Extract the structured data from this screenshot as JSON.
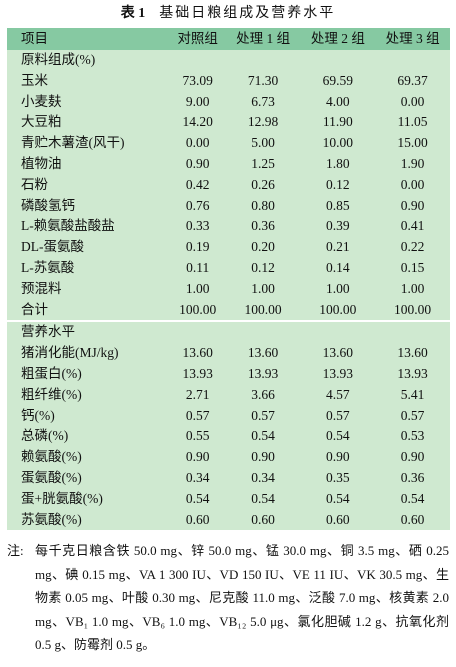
{
  "title": {
    "label": "表 1",
    "text": "基础日粮组成及营养水平"
  },
  "table": {
    "header": [
      "项目",
      "对照组",
      "处理 1 组",
      "处理 2 组",
      "处理 3 组"
    ],
    "sections": [
      {
        "title": "原料组成(%)",
        "rows": [
          [
            "玉米",
            "73.09",
            "71.30",
            "69.59",
            "69.37"
          ],
          [
            "小麦麸",
            "9.00",
            "6.73",
            "4.00",
            "0.00"
          ],
          [
            "大豆粕",
            "14.20",
            "12.98",
            "11.90",
            "11.05"
          ],
          [
            "青贮木薯渣(风干)",
            "0.00",
            "5.00",
            "10.00",
            "15.00"
          ],
          [
            "植物油",
            "0.90",
            "1.25",
            "1.80",
            "1.90"
          ],
          [
            "石粉",
            "0.42",
            "0.26",
            "0.12",
            "0.00"
          ],
          [
            "磷酸氢钙",
            "0.76",
            "0.80",
            "0.85",
            "0.90"
          ],
          [
            "L-赖氨酸盐酸盐",
            "0.33",
            "0.36",
            "0.39",
            "0.41"
          ],
          [
            "DL-蛋氨酸",
            "0.19",
            "0.20",
            "0.21",
            "0.22"
          ],
          [
            "L-苏氨酸",
            "0.11",
            "0.12",
            "0.14",
            "0.15"
          ],
          [
            "预混料",
            "1.00",
            "1.00",
            "1.00",
            "1.00"
          ],
          [
            "合计",
            "100.00",
            "100.00",
            "100.00",
            "100.00"
          ]
        ]
      },
      {
        "title": "营养水平",
        "rows": [
          [
            "猪消化能(MJ/kg)",
            "13.60",
            "13.60",
            "13.60",
            "13.60"
          ],
          [
            "粗蛋白(%)",
            "13.93",
            "13.93",
            "13.93",
            "13.93"
          ],
          [
            "粗纤维(%)",
            "2.71",
            "3.66",
            "4.57",
            "5.41"
          ],
          [
            "钙(%)",
            "0.57",
            "0.57",
            "0.57",
            "0.57"
          ],
          [
            "总磷(%)",
            "0.55",
            "0.54",
            "0.54",
            "0.53"
          ],
          [
            "赖氨酸(%)",
            "0.90",
            "0.90",
            "0.90",
            "0.90"
          ],
          [
            "蛋氨酸(%)",
            "0.34",
            "0.34",
            "0.35",
            "0.36"
          ],
          [
            "蛋+胱氨酸(%)",
            "0.54",
            "0.54",
            "0.54",
            "0.54"
          ],
          [
            "苏氨酸(%)",
            "0.60",
            "0.60",
            "0.60",
            "0.60"
          ]
        ]
      }
    ]
  },
  "note": {
    "label": "注:",
    "text": "每千克日粮含铁 50.0 mg、锌 50.0 mg、锰 30.0 mg、铜 3.5 mg、硒 0.25 mg、碘 0.15 mg、VA 1 300 IU、VD 150 IU、VE 11 IU、VK 30.5 mg、生物素 0.05 mg、叶酸 0.30 mg、尼克酸 11.0 mg、泛酸 7.0 mg、核黄素 2.0 mg、VB₁ 1.0 mg、VB₆ 1.0 mg、VB₁₂ 5.0 μg、氯化胆碱 1.2 g、抗氧化剂 0.5 g、防霉剂 0.5 g。"
  }
}
